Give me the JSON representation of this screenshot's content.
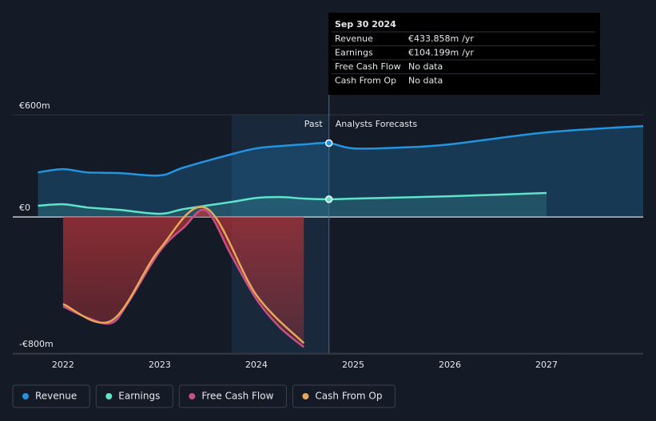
{
  "chart_data": {
    "type": "line",
    "x_label_values": [
      2022,
      2023,
      2024,
      2025,
      2026,
      2027
    ],
    "xlim": [
      2021.48,
      2028
    ],
    "xticks": [
      2022,
      2023,
      2024,
      2025,
      2026,
      2027
    ],
    "ylim": [
      -800,
      600
    ],
    "yticks": [
      {
        "value": 600,
        "label": "€600m"
      },
      {
        "value": 0,
        "label": "€0"
      },
      {
        "value": -800,
        "label": "-€800m"
      }
    ],
    "past_label": "Past",
    "forecast_label": "Analysts Forecasts",
    "series": [
      {
        "name": "Revenue",
        "color": "#2394df",
        "x": [
          2021.74,
          2022.0,
          2022.25,
          2022.58,
          2023.0,
          2023.25,
          2023.75,
          2024.0,
          2024.25,
          2024.5,
          2024.75,
          2025.0,
          2025.5,
          2026.0,
          2027.0,
          2028.0
        ],
        "values": [
          262,
          281,
          262,
          258,
          244,
          291,
          370,
          403,
          417,
          427,
          433.858,
          403,
          408,
          427,
          497,
          534
        ]
      },
      {
        "name": "Earnings",
        "color": "#5fe3c9",
        "x": [
          2021.74,
          2022.0,
          2022.25,
          2022.58,
          2023.0,
          2023.25,
          2023.75,
          2024.0,
          2024.25,
          2024.5,
          2024.75,
          2025.0,
          2026.0,
          2027.0
        ],
        "values": [
          66,
          75,
          56,
          42,
          19,
          47,
          89,
          112,
          117,
          108,
          104.199,
          108,
          122,
          141
        ]
      },
      {
        "name": "Free Cash Flow",
        "color": "#c94f85",
        "x": [
          2022.0,
          2022.25,
          2022.5,
          2022.67,
          2023.0,
          2023.25,
          2023.48,
          2023.74,
          2024.0,
          2024.24,
          2024.49
        ],
        "values": [
          -525,
          -591,
          -623,
          -506,
          -202,
          -61,
          37,
          -225,
          -483,
          -647,
          -764
        ]
      },
      {
        "name": "Cash From Op",
        "color": "#e8a857",
        "x": [
          2022.0,
          2022.5,
          2023.0,
          2023.48,
          2024.0,
          2024.49
        ],
        "values": [
          -511,
          -609,
          -188,
          52,
          -459,
          -741
        ]
      }
    ],
    "tooltip": {
      "title": "Sep 30 2024",
      "rows": [
        {
          "label": "Revenue",
          "value": "€433.858m",
          "unit": "/yr"
        },
        {
          "label": "Earnings",
          "value": "€104.199m",
          "unit": "/yr"
        },
        {
          "label": "Free Cash Flow",
          "value": "No data"
        },
        {
          "label": "Cash From Op",
          "value": "No data"
        }
      ]
    }
  }
}
